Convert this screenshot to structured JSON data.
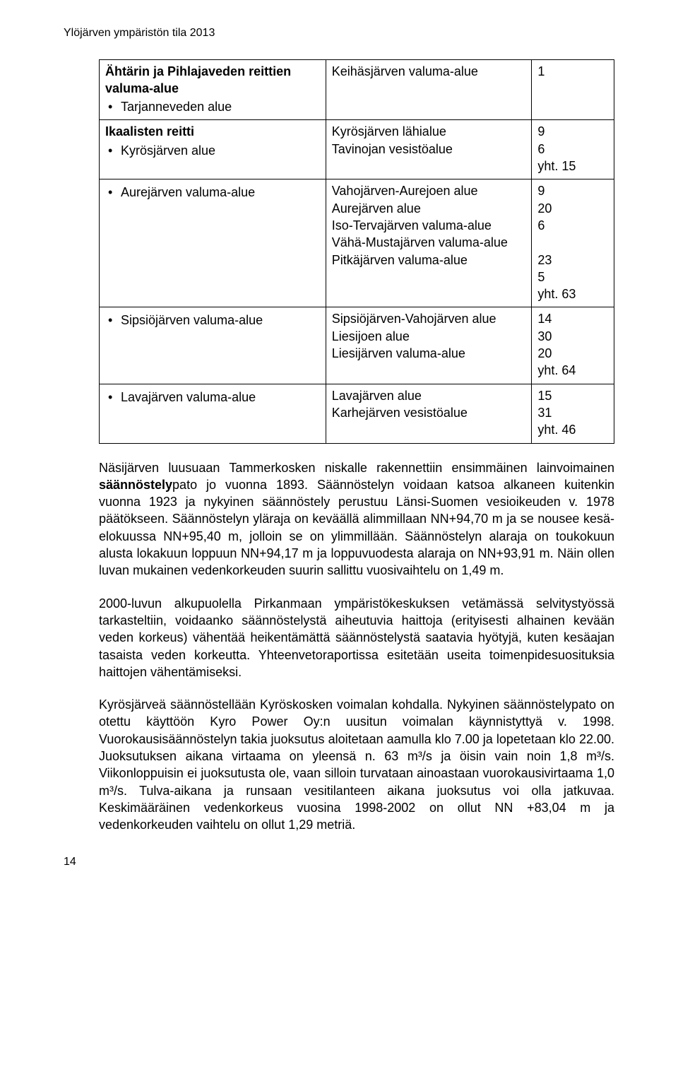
{
  "running_header": "Ylöjärven ympäristön tila 2013",
  "table": {
    "rows": [
      {
        "col1_bold": "Ähtärin ja Pihlajaveden reittien valuma-alue",
        "col1_items": [
          "Tarjanneveden alue"
        ],
        "col2_lines": [
          "Keihäsjärven valuma-alue"
        ],
        "col3_lines": [
          "1"
        ]
      },
      {
        "col1_bold": "Ikaalisten reitti",
        "col1_items": [
          "Kyrösjärven alue"
        ],
        "col2_lines": [
          "Kyrösjärven lähialue",
          "Tavinojan vesistöalue"
        ],
        "col3_lines": [
          "9",
          "6",
          "yht. 15"
        ]
      },
      {
        "col1_bold": "",
        "col1_items": [
          "Aurejärven valuma-alue"
        ],
        "col2_lines": [
          "Vahojärven-Aurejoen alue",
          "Aurejärven alue",
          "Iso-Tervajärven valuma-alue",
          "Vähä-Mustajärven valuma-alue",
          "Pitkäjärven valuma-alue"
        ],
        "col3_lines": [
          "9",
          "20",
          "6",
          "",
          "23",
          "5",
          "yht. 63"
        ]
      },
      {
        "col1_bold": "",
        "col1_items": [
          "Sipsiöjärven valuma-alue"
        ],
        "col2_lines": [
          "Sipsiöjärven-Vahojärven alue",
          "Liesijoen alue",
          "Liesijärven valuma-alue"
        ],
        "col3_lines": [
          "14",
          "30",
          "20",
          "yht. 64"
        ]
      },
      {
        "col1_bold": "",
        "col1_items": [
          "Lavajärven valuma-alue"
        ],
        "col2_lines": [
          "Lavajärven alue",
          "Karhejärven vesistöalue"
        ],
        "col3_lines": [
          "15",
          "31",
          "yht. 46"
        ]
      }
    ]
  },
  "paragraphs": {
    "p1_pre": "Näsijärven luusuaan Tammerkosken niskalle rakennettiin ensimmäinen lainvoimainen ",
    "p1_bold": "säännöstely",
    "p1_post": "pato jo vuonna 1893. Säännöstelyn voidaan katsoa alkaneen kuitenkin vuonna 1923 ja nykyinen säännöstely perustuu Länsi-Suomen vesioikeuden v. 1978 päätökseen. Säännöstelyn yläraja on keväällä alimmillaan NN+94,70 m ja se nousee kesä-elokuussa NN+95,40 m, jolloin se on ylimmillään. Säännöstelyn alaraja on toukokuun alusta lokakuun loppuun NN+94,17 m ja loppuvuodesta alaraja on NN+93,91 m. Näin ollen luvan mukainen vedenkorkeuden suurin sallittu vuosivaihtelu on 1,49 m.",
    "p2": "2000-luvun alkupuolella Pirkanmaan ympäristökeskuksen vetämässä selvitystyössä tarkasteltiin, voidaanko säännöstelystä aiheutuvia haittoja (erityisesti alhainen kevään veden korkeus) vähentää heikentämättä säännöstelystä saatavia hyötyjä, kuten kesäajan tasaista veden korkeutta. Yhteenvetoraportissa esitetään useita toimenpidesuosituksia haittojen vähentämiseksi.",
    "p3": "Kyrösjärveä säännöstellään Kyröskosken voimalan kohdalla. Nykyinen säännöstelypato on otettu käyttöön Kyro Power Oy:n uusitun voimalan käynnistyttyä v. 1998. Vuorokausisäännöstelyn takia juoksutus aloitetaan aamulla klo 7.00 ja lopetetaan klo 22.00. Juoksutuksen aikana virtaama on yleensä n. 63 m³/s ja öisin vain noin 1,8 m³/s. Viikonloppuisin ei juoksutusta ole, vaan silloin turvataan ainoastaan vuorokausivirtaama 1,0 m³/s. Tulva-aikana ja runsaan vesitilanteen aikana juoksutus voi olla jatkuvaa. Keskimääräinen vedenkorkeus vuosina 1998-2002 on ollut NN +83,04 m ja vedenkorkeuden vaihtelu on ollut 1,29 metriä."
  },
  "page_number": "14"
}
